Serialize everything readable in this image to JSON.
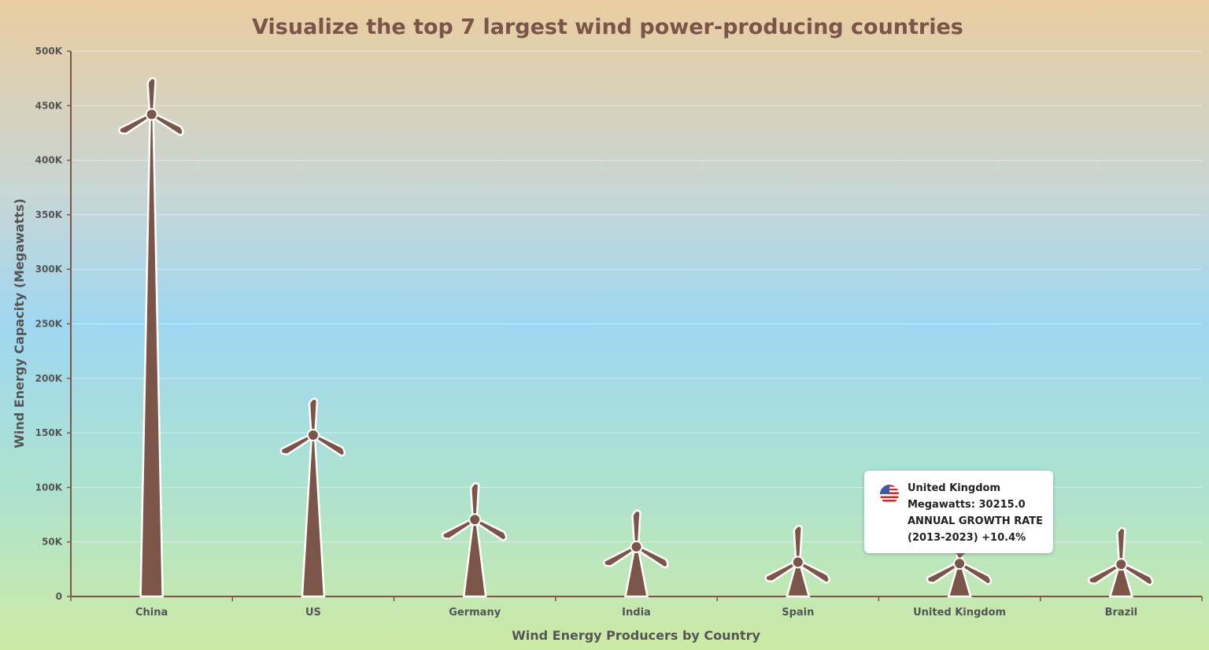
{
  "chart_data": {
    "type": "bar",
    "marker": "wind-turbine",
    "title": "Visualize the top 7 largest wind power-producing countries",
    "xlabel": "Wind Energy Producers by Country",
    "ylabel": "Wind Energy Capacity (Megawatts)",
    "categories": [
      "China",
      "US",
      "Germany",
      "India",
      "Spain",
      "United Kingdom",
      "Brazil"
    ],
    "values": [
      442000,
      148000,
      70500,
      45500,
      31500,
      30215,
      29500
    ],
    "ylim": [
      0,
      500000
    ],
    "yticks": [
      0,
      50000,
      100000,
      150000,
      200000,
      250000,
      300000,
      350000,
      400000,
      450000,
      500000
    ],
    "ytick_labels": [
      "0",
      "50K",
      "100K",
      "150K",
      "200K",
      "250K",
      "300K",
      "350K",
      "400K",
      "450K",
      "500K"
    ],
    "grid": true,
    "colors": {
      "turbine": "#7a5548",
      "title": "#7a5548",
      "axis": "#7a5548",
      "label": "#555555"
    }
  },
  "tooltip": {
    "icon": "us-flag-icon",
    "title": "United Kingdom",
    "line1": "Megawatts: 30215.0",
    "line2": "ANNUAL GROWTH RATE",
    "line3": "(2013-2023)  +10.4%"
  }
}
